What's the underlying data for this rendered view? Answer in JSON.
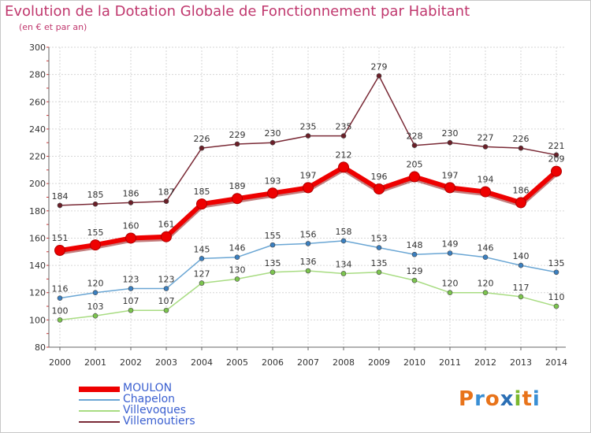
{
  "header": {
    "title": "Evolution de la Dotation Globale de Fonctionnement par Habitant",
    "subtitle": "(en € et par an)"
  },
  "logo": {
    "text": "Proxiti",
    "colors": [
      "#e8731a",
      "#3a8fd4",
      "#e8731a",
      "#2b6fb5",
      "#7cb82f",
      "#e8731a",
      "#3a8fd4"
    ]
  },
  "chart_data": {
    "type": "line",
    "title": "Evolution de la Dotation Globale de Fonctionnement par Habitant",
    "subtitle": "(en € et par an)",
    "x": [
      "2000",
      "2001",
      "2002",
      "2003",
      "2004",
      "2005",
      "2006",
      "2007",
      "2008",
      "2009",
      "2010",
      "2011",
      "2012",
      "2013",
      "2014"
    ],
    "ylim": [
      80,
      300
    ],
    "yticks": [
      80,
      100,
      120,
      140,
      160,
      180,
      200,
      220,
      240,
      260,
      280,
      300
    ],
    "grid": true,
    "legend": "bottom-left",
    "series": [
      {
        "name": "Villemoutiers",
        "color": "#7a2a36",
        "marker": "#6b1f28",
        "values": [
          184,
          185,
          186,
          187,
          226,
          229,
          230,
          235,
          235,
          279,
          228,
          230,
          227,
          226,
          221
        ]
      },
      {
        "name": "Chapelon",
        "color": "#6aa6d4",
        "marker": "#3a7fc0",
        "values": [
          116,
          120,
          123,
          123,
          145,
          146,
          155,
          156,
          158,
          153,
          148,
          149,
          146,
          140,
          135
        ]
      },
      {
        "name": "Villevoques",
        "color": "#a8dc82",
        "marker": "#7cc54e",
        "values": [
          100,
          103,
          107,
          107,
          127,
          130,
          135,
          136,
          134,
          135,
          129,
          120,
          120,
          117,
          110
        ]
      },
      {
        "name": "MOULON",
        "color": "#ee0000",
        "marker": "#ee0000",
        "values": [
          151,
          155,
          160,
          161,
          185,
          189,
          193,
          197,
          212,
          196,
          205,
          197,
          194,
          186,
          209
        ]
      }
    ]
  },
  "legend_items": [
    {
      "name": "MOULON",
      "color": "#ee0000",
      "text_color": "#3a5fd0"
    },
    {
      "name": "Chapelon",
      "color": "#6aa6d4",
      "text_color": "#3a5fd0"
    },
    {
      "name": "Villevoques",
      "color": "#a8dc82",
      "text_color": "#3a5fd0"
    },
    {
      "name": "Villemoutiers",
      "color": "#7a2a36",
      "text_color": "#3a5fd0"
    }
  ]
}
